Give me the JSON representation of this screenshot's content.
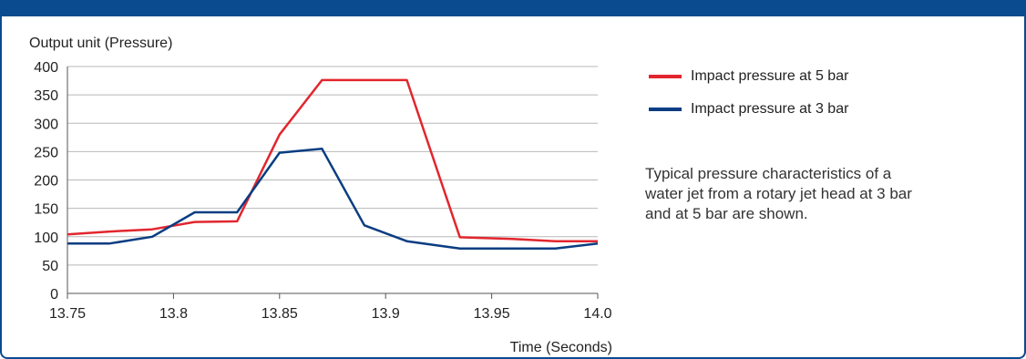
{
  "chart_data": {
    "type": "line",
    "ylabel": "Output unit (Pressure)",
    "xlabel": "Time (Seconds)",
    "xlim": [
      13.75,
      14.0
    ],
    "ylim": [
      0,
      400
    ],
    "grid": true,
    "legend_position": "right",
    "x_ticks": [
      "13.75",
      "13.8",
      "13.85",
      "13.9",
      "13.95",
      "14.0"
    ],
    "y_ticks": [
      "0",
      "50",
      "100",
      "150",
      "200",
      "250",
      "300",
      "350",
      "400"
    ],
    "series": [
      {
        "name": "Impact pressure at 5 bar",
        "color": "#e2262e",
        "x": [
          13.75,
          13.77,
          13.79,
          13.81,
          13.83,
          13.85,
          13.87,
          13.89,
          13.91,
          13.935,
          13.96,
          13.98,
          14.0
        ],
        "y": [
          104,
          109,
          113,
          126,
          127,
          280,
          376,
          376,
          376,
          99,
          96,
          92,
          92
        ]
      },
      {
        "name": "Impact pressure at 3 bar",
        "color": "#0a3d82",
        "x": [
          13.75,
          13.77,
          13.79,
          13.81,
          13.83,
          13.85,
          13.87,
          13.89,
          13.91,
          13.935,
          13.96,
          13.98,
          14.0
        ],
        "y": [
          88,
          88,
          100,
          143,
          143,
          248,
          255,
          120,
          92,
          79,
          79,
          79,
          88
        ]
      }
    ]
  },
  "note": "Typical pressure characteristics of a water jet from a rotary jet head at 3 bar and at 5 bar are shown."
}
